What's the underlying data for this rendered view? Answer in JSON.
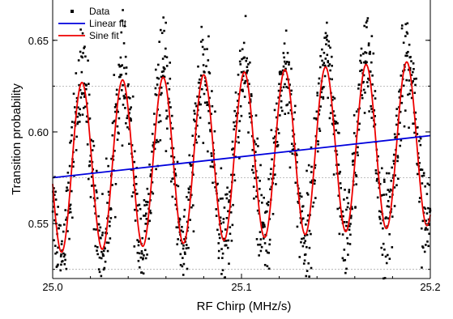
{
  "chart_data": {
    "type": "scatter",
    "xlabel": "RF Chirp (MHz/s)",
    "ylabel": "Transition probability",
    "xlim": [
      25.0,
      25.2
    ],
    "ylim": [
      0.52,
      0.672
    ],
    "x_ticks": [
      25.0,
      25.1,
      25.2
    ],
    "x_tick_labels": [
      "25.0",
      "25.1",
      "25.2"
    ],
    "y_ticks": [
      0.55,
      0.6,
      0.65
    ],
    "y_tick_labels": [
      "0.55",
      "0.60",
      "0.65"
    ],
    "grid_dashed_y": [
      0.525,
      0.575,
      0.625
    ],
    "legend_position": "top-left",
    "series": [
      {
        "name": "Data",
        "kind": "points",
        "color": "#000000",
        "description_model": {
          "x_start": 25.0,
          "x_end": 25.2,
          "count": 1400,
          "center": 0.587,
          "amplitude_start": 0.046,
          "amplitude_end": 0.045,
          "period": 0.0215,
          "phase_x_first_peak": 25.0155,
          "noise_sd": 0.014
        }
      },
      {
        "name": "Linear fit",
        "kind": "line",
        "color": "#0000dd",
        "x": [
          25.0,
          25.2
        ],
        "y": [
          0.575,
          0.598
        ]
      },
      {
        "name": "Sine fit",
        "kind": "line",
        "color": "#ee0000",
        "peaks_x": [
          25.0155,
          25.037,
          25.058,
          25.08,
          25.101,
          25.123,
          25.144,
          25.166,
          25.187
        ],
        "peaks_y": [
          0.625,
          0.627,
          0.628,
          0.631,
          0.633,
          0.635,
          0.636,
          0.638,
          0.639
        ],
        "troughs_x": [
          25.005,
          25.026,
          25.048,
          25.069,
          25.091,
          25.112,
          25.134,
          25.155,
          25.177,
          25.198
        ],
        "troughs_y": [
          0.534,
          0.535,
          0.537,
          0.538,
          0.54,
          0.542,
          0.544,
          0.546,
          0.548,
          0.55
        ]
      }
    ]
  }
}
